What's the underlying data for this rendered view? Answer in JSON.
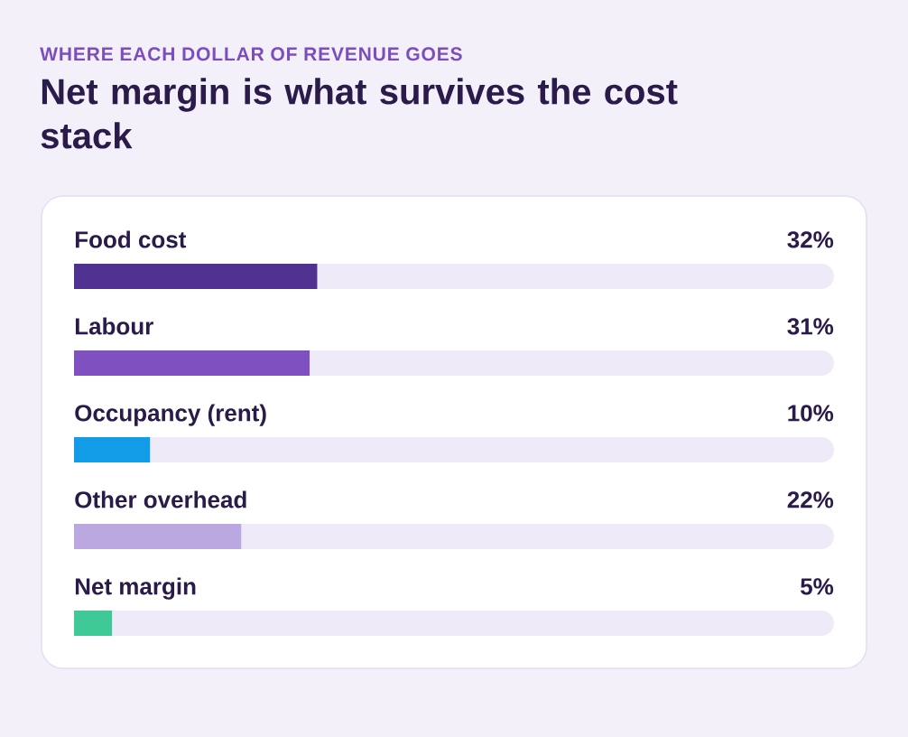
{
  "chart_data": {
    "type": "bar",
    "orientation": "horizontal",
    "subtitle": "WHERE EACH DOLLAR OF REVENUE GOES",
    "title": "Net margin is what survives the cost stack",
    "categories": [
      "Food cost",
      "Labour",
      "Occupancy (rent)",
      "Other overhead",
      "Net margin"
    ],
    "values": [
      32,
      31,
      10,
      22,
      5
    ],
    "colors": [
      "#4f3290",
      "#7e50c0",
      "#129be6",
      "#bba8e0",
      "#3ec996"
    ],
    "value_labels": [
      "32%",
      "31%",
      "10%",
      "22%",
      "5%"
    ],
    "xlim": [
      0,
      100
    ]
  }
}
